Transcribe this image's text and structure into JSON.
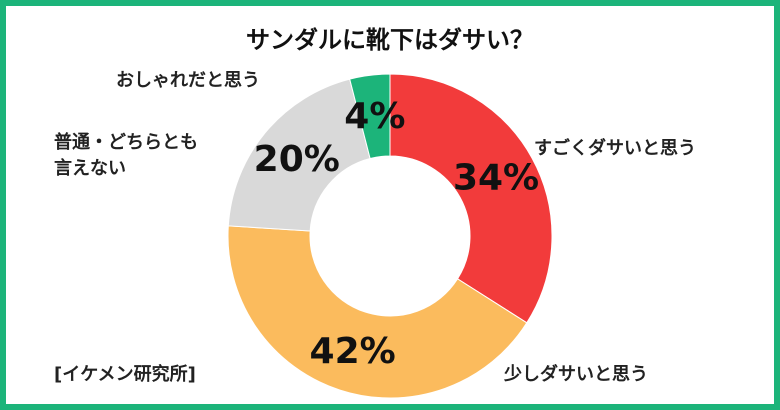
{
  "chart_data": {
    "type": "donut",
    "title": "サンダルに靴下はダサい？",
    "categories": [
      "すごくダサいと思う",
      "少しダサいと思う",
      "普通・どちらとも言えない",
      "おしゃれだと思う"
    ],
    "values": [
      34,
      42,
      20,
      4
    ],
    "value_labels": [
      "34%",
      "42%",
      "20%",
      "4%"
    ],
    "colors": [
      "#f23b3b",
      "#fbbb5d",
      "#d9d9d9",
      "#1cb47a"
    ],
    "source": "[イケメン研究所]"
  }
}
